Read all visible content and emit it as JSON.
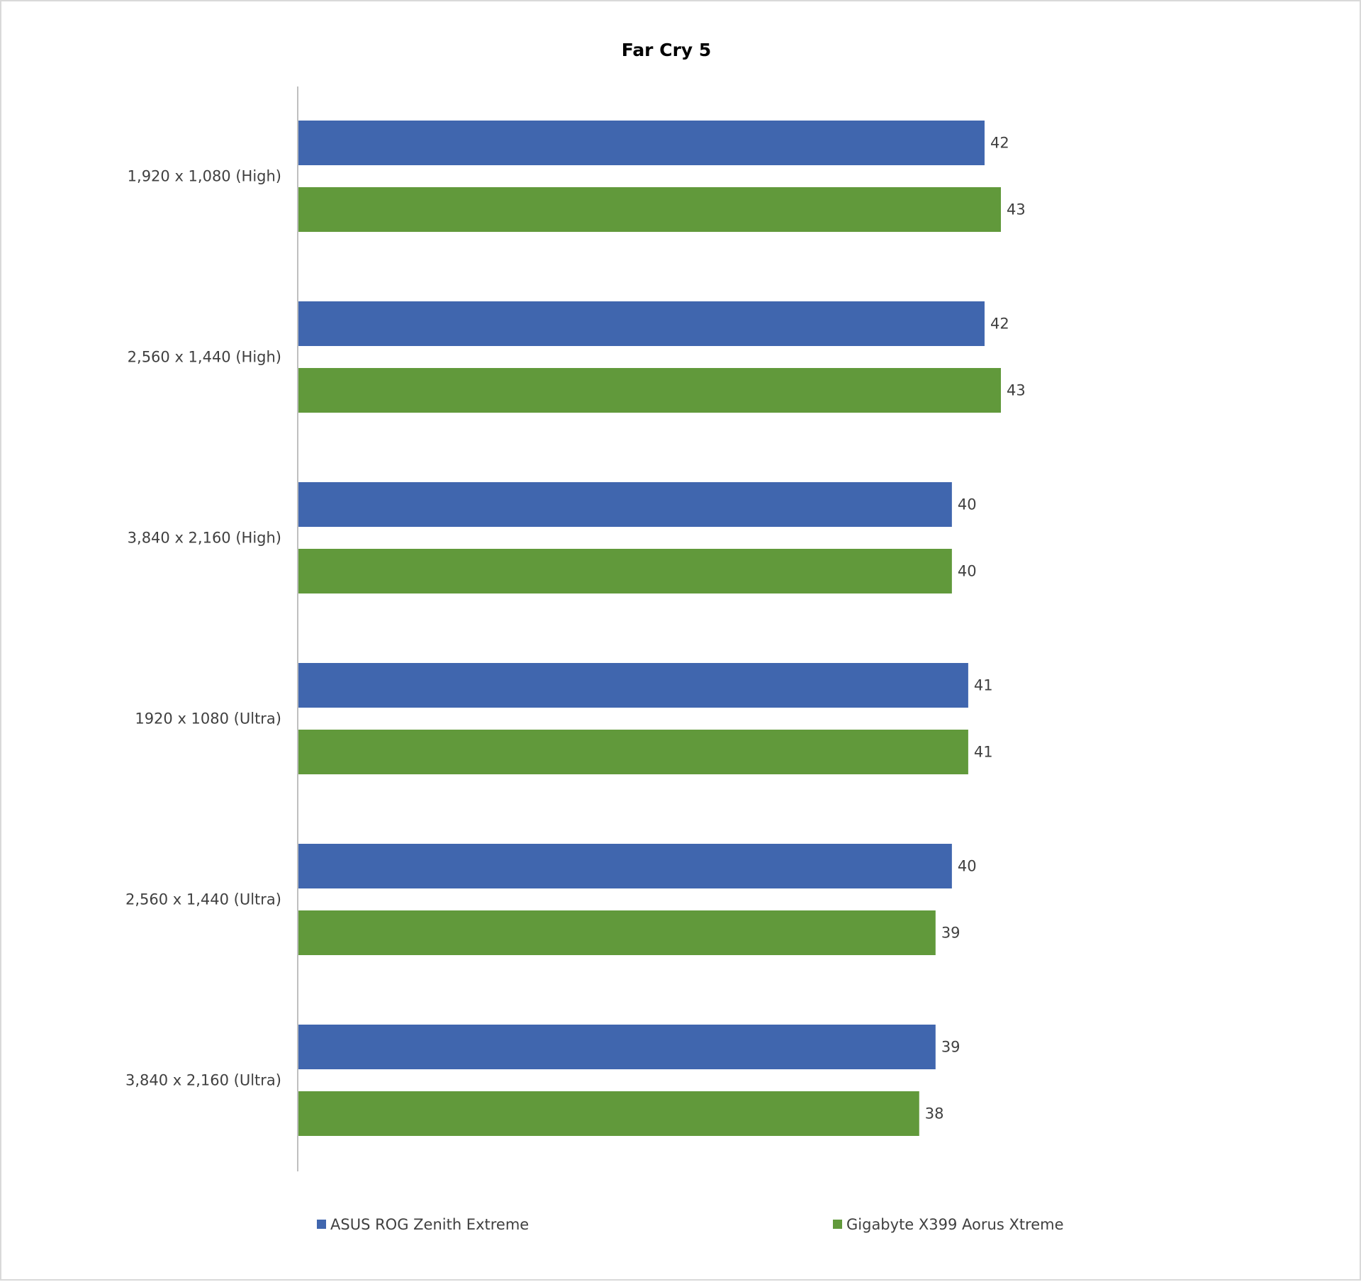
{
  "chart_data": {
    "type": "bar",
    "orientation": "horizontal",
    "title": "Far Cry 5",
    "categories": [
      "1,920 x 1,080 (High)",
      "2,560 x 1,440 (High)",
      "3,840 x 2,160 (High)",
      "1920 x 1080 (Ultra)",
      "2,560 x 1,440 (Ultra)",
      "3,840 x 2,160 (Ultra)"
    ],
    "series": [
      {
        "name": "ASUS ROG Zenith Extreme",
        "color": "#4066ae",
        "values": [
          42,
          42,
          40,
          41,
          40,
          39
        ]
      },
      {
        "name": "Gigabyte X399 Aorus Xtreme",
        "color": "#61993b",
        "values": [
          43,
          43,
          40,
          41,
          39,
          38
        ]
      }
    ],
    "xlim": [
      0,
      43
    ],
    "grid": false,
    "data_labels": true,
    "legend_position": "bottom"
  }
}
